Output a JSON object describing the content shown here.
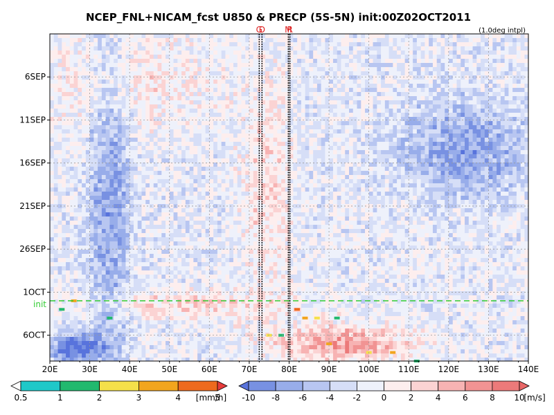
{
  "chart_data": {
    "type": "heatmap",
    "title": "NCEP_FNL+NICAM_fcst U850 & PRECP (5S-5N) init:00Z02OCT2011",
    "subtitle": "(1.0deg intpl)",
    "x_ticks": [
      "20E",
      "30E",
      "40E",
      "50E",
      "60E",
      "70E",
      "80E",
      "90E",
      "100E",
      "110E",
      "120E",
      "130E",
      "140E"
    ],
    "x_range": [
      20,
      140
    ],
    "y_ticks": [
      {
        "label": "6SEP",
        "date": "2011-09-06"
      },
      {
        "label": "11SEP",
        "date": "2011-09-11"
      },
      {
        "label": "16SEP",
        "date": "2011-09-16"
      },
      {
        "label": "21SEP",
        "date": "2011-09-21"
      },
      {
        "label": "26SEP",
        "date": "2011-09-26"
      },
      {
        "label": "1OCT",
        "date": "2011-10-01"
      },
      {
        "label": "6OCT",
        "date": "2011-10-06"
      }
    ],
    "y_range": [
      "2011-09-01",
      "2011-10-09"
    ],
    "init_line": {
      "label": "init",
      "date": "2011-10-02",
      "color": "#33cc33"
    },
    "site_lines": [
      {
        "label": "G",
        "lon": 72.5
      },
      {
        "label": "D",
        "lon": 73.2
      },
      {
        "label": "M",
        "lon": 79.8
      },
      {
        "label": "R",
        "lon": 80.2
      }
    ],
    "grid": true,
    "u850_features": [
      {
        "name": "easterly band",
        "lon_range": [
          30,
          40
        ],
        "dates": [
          "2011-09-01",
          "2011-10-09"
        ],
        "u": -6
      },
      {
        "name": "westerly burst",
        "lon_range": [
          69,
          80
        ],
        "dates": [
          "2011-09-08",
          "2011-09-30"
        ],
        "u": 4
      },
      {
        "name": "westerly at init",
        "lon_range": [
          30,
          80
        ],
        "dates": [
          "2011-10-01",
          "2011-10-04"
        ],
        "u": 4
      },
      {
        "name": "forecast westerly",
        "lon_range": [
          78,
          110
        ],
        "dates": [
          "2011-10-05",
          "2011-10-09"
        ],
        "u": 8
      },
      {
        "name": "far-east easterlies",
        "lon_range": [
          108,
          140
        ],
        "dates": [
          "2011-09-09",
          "2011-09-20"
        ],
        "u": -6
      },
      {
        "name": "early-period westerlies",
        "lon_range": [
          20,
          60
        ],
        "dates": [
          "2011-09-01",
          "2011-09-12"
        ],
        "u": 3
      },
      {
        "name": "south-west easterlies",
        "lon_range": [
          20,
          33
        ],
        "dates": [
          "2011-10-06",
          "2011-10-09"
        ],
        "u": -10
      }
    ],
    "precip_features": [
      {
        "lon": 23,
        "date": "2011-10-03",
        "mm_h": 1.5
      },
      {
        "lon": 26,
        "date": "2011-10-02",
        "mm_h": 3
      },
      {
        "lon": 35,
        "date": "2011-10-04",
        "mm_h": 1
      },
      {
        "lon": 82,
        "date": "2011-10-03",
        "mm_h": 4
      },
      {
        "lon": 84,
        "date": "2011-10-04",
        "mm_h": 3
      },
      {
        "lon": 87,
        "date": "2011-10-04",
        "mm_h": 2
      },
      {
        "lon": 92,
        "date": "2011-10-04",
        "mm_h": 1
      },
      {
        "lon": 75,
        "date": "2011-10-06",
        "mm_h": 2
      },
      {
        "lon": 78,
        "date": "2011-10-06",
        "mm_h": 1
      },
      {
        "lon": 90,
        "date": "2011-10-07",
        "mm_h": 3
      },
      {
        "lon": 100,
        "date": "2011-10-08",
        "mm_h": 2
      },
      {
        "lon": 106,
        "date": "2011-10-08",
        "mm_h": 3
      },
      {
        "lon": 112,
        "date": "2011-10-09",
        "mm_h": 1
      }
    ],
    "precip_legend": {
      "unit": "[mm/h]",
      "labels": [
        "0.5",
        "1",
        "2",
        "3",
        "4",
        "5"
      ],
      "colors": [
        "#ffffff",
        "#1fc8c8",
        "#22b96e",
        "#f5e04a",
        "#f2a51e",
        "#ee6a1e",
        "#e83c3c"
      ]
    },
    "wind_legend": {
      "unit": "[m/s]",
      "labels": [
        "-10",
        "-8",
        "-6",
        "-4",
        "-2",
        "0",
        "2",
        "4",
        "6",
        "8",
        "10"
      ],
      "colors": [
        "#5873dc",
        "#7891e2",
        "#98adea",
        "#b8c6f1",
        "#d6def7",
        "#eef1fb",
        "#fdeeee",
        "#fbd3d3",
        "#f7b3b3",
        "#f19393",
        "#ec7a7a",
        "#e96767"
      ]
    }
  }
}
